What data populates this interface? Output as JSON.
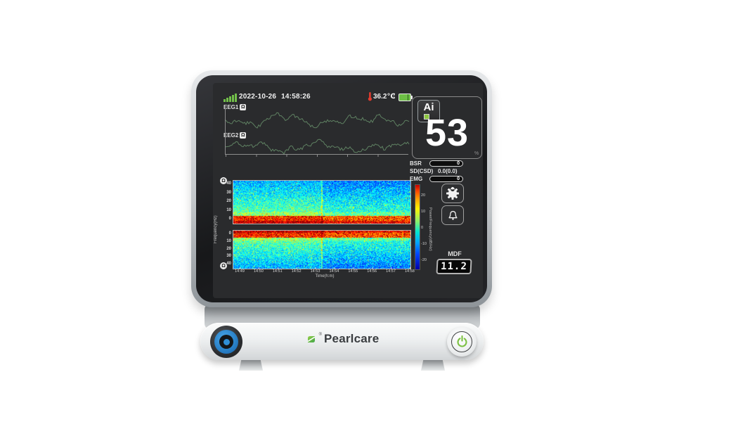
{
  "device": {
    "brand": "Pearlcare",
    "status": {
      "date": "2022-10-26",
      "time": "14:58:26",
      "temperature": "36.2℃",
      "signal_icon": "signal-bars",
      "thermometer_icon": "thermometer",
      "arrows_icon": "down-up-arrows",
      "battery_icon": "battery",
      "arrows_glyph": "↓↑"
    },
    "eeg": {
      "ch1_label": "EEG1",
      "ch2_label": "EEG2",
      "impedance_glyph": "Ω"
    },
    "ai_panel": {
      "badge": "Ai",
      "value": "53",
      "percent_mark": "%"
    },
    "metrics": [
      {
        "label": "BSR",
        "value": "0"
      },
      {
        "label": "SD(CSD)",
        "value": "0.0(0.0)"
      },
      {
        "label": "EMG",
        "value": "0"
      }
    ],
    "buttons": {
      "settings_icon": "gear",
      "alarm_icon": "bell"
    },
    "mdf": {
      "label": "MDF",
      "value": "11.2"
    },
    "front_panel": {
      "logo_text": "Pearlcare",
      "registered_mark": "®",
      "power_icon": "power"
    }
  },
  "colors": {
    "screen_bg": "#2a2b2d",
    "signal_green": "#72bf4a",
    "battery_green": "#6dbf45",
    "thermometer_red": "#e23b2e",
    "eeg_trace": "#5f8162",
    "knob_blue": "#2a82c9",
    "power_green": "#7cc043",
    "logo_green": "#6cbf3f"
  },
  "chart_data": [
    {
      "type": "line",
      "title": "EEG1",
      "color": "#5f8162"
    },
    {
      "type": "line",
      "title": "EEG2",
      "color": "#5f8162"
    },
    {
      "type": "heatmap",
      "title": "EEG1",
      "xlabel": "Time(h:m)",
      "ylabel": "Frequency(Hz)",
      "x_ticks": [
        "14:49",
        "14:50",
        "14:51",
        "14:52",
        "14:53",
        "14:54",
        "14:55",
        "14:56",
        "14:57",
        "14:58"
      ],
      "y_ticks": [
        "40",
        "30",
        "20",
        "10",
        "0"
      ],
      "ylim": [
        0,
        40
      ],
      "orientation": "low-frequency-at-bottom",
      "palette": "jet",
      "colorbar": {
        "label": "Power/Frequency(dB/Hz)",
        "ticks": [
          "20",
          "10",
          "0",
          "-10",
          "-20"
        ],
        "range": [
          -20,
          20
        ]
      }
    },
    {
      "type": "heatmap",
      "title": "EEG2",
      "xlabel": "Time(h:m)",
      "ylabel": "Frequency(Hz)",
      "y_ticks": [
        "0",
        "10",
        "20",
        "30",
        "40"
      ],
      "ylim": [
        0,
        40
      ],
      "orientation": "low-frequency-at-top",
      "palette": "jet",
      "shares_x_axis": true
    }
  ]
}
